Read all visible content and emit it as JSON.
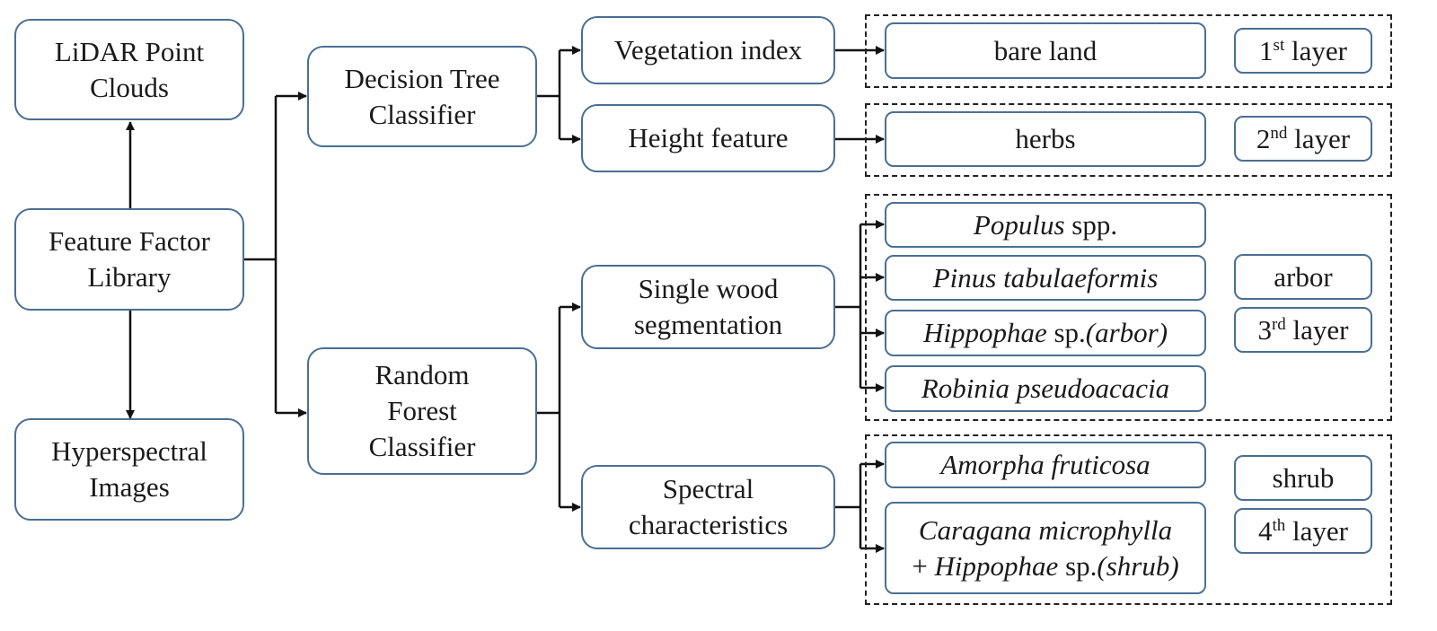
{
  "sources": {
    "lidar": [
      "LiDAR Point",
      "Clouds"
    ],
    "library": [
      "Feature Factor",
      "Library"
    ],
    "hyperspectral": [
      "Hyperspectral",
      "Images"
    ]
  },
  "classifiers": {
    "decision_tree": [
      "Decision Tree",
      "Classifier"
    ],
    "random_forest": [
      "Random",
      "Forest",
      "Classifier"
    ]
  },
  "features": {
    "vegetation_index": "Vegetation index",
    "height_feature": "Height feature",
    "single_wood": [
      "Single wood",
      "segmentation"
    ],
    "spectral": [
      "Spectral",
      "characteristics"
    ]
  },
  "classes": {
    "bare_land": "bare land",
    "herbs": "herbs",
    "populus": {
      "italic": "Populus",
      "rest": " spp."
    },
    "pinus": {
      "italic": "Pinus tabulaeformis"
    },
    "hippophae_arbor": {
      "italic1": "Hippophae",
      "rest": " sp.",
      "italic2": "(arbor)"
    },
    "robinia": {
      "italic": "Robinia pseudoacacia"
    },
    "amorpha": {
      "italic": "Amorpha fruticosa"
    },
    "caragana": {
      "line1_italic": "Caragana microphylla",
      "line2_prefix": "+ ",
      "line2_italic1": "Hippophae",
      "line2_rest": " sp.",
      "line2_italic2": "(shrub)"
    }
  },
  "layers": {
    "layer1": {
      "num": "1",
      "sup": "st",
      "word": " layer"
    },
    "layer2": {
      "num": "2",
      "sup": "nd",
      "word": " layer"
    },
    "layer3": {
      "num": "3",
      "sup": "rd",
      "word": " layer"
    },
    "layer4": {
      "num": "4",
      "sup": "th",
      "word": " layer"
    },
    "arbor": "arbor",
    "shrub": "shrub"
  },
  "colors": {
    "box_border": "#4a6f93",
    "connector": "#111111",
    "group_border": "#222222"
  }
}
